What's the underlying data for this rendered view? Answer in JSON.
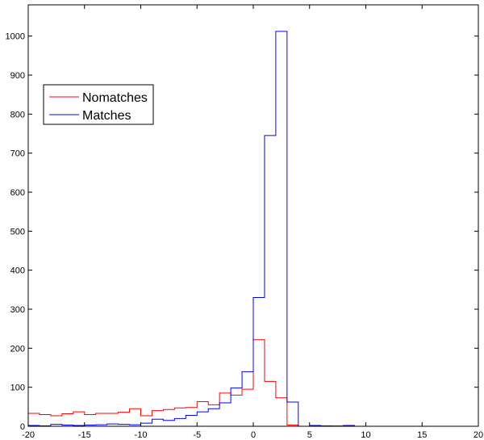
{
  "chart_data": {
    "type": "histogram",
    "title": "",
    "xlabel": "",
    "ylabel": "",
    "xlim": [
      -20,
      20
    ],
    "ylim": [
      0,
      1080
    ],
    "xticks": [
      -20,
      -15,
      -10,
      -5,
      0,
      5,
      10,
      15,
      20
    ],
    "yticks": [
      0,
      100,
      200,
      300,
      400,
      500,
      600,
      700,
      800,
      900,
      1000
    ],
    "grid": false,
    "legend_position": "upper-left",
    "bin_edges": [
      -20,
      -19,
      -18,
      -17,
      -16,
      -15,
      -14,
      -13,
      -12,
      -11,
      -10,
      -9,
      -8,
      -7,
      -6,
      -5,
      -4,
      -3,
      -2,
      -1,
      0,
      1,
      2,
      3,
      4,
      5,
      6,
      7,
      8,
      9,
      10
    ],
    "series": [
      {
        "name": "Nomatches",
        "color": "#ff0000",
        "values": [
          33,
          30,
          27,
          32,
          37,
          30,
          33,
          33,
          36,
          45,
          27,
          40,
          43,
          47,
          48,
          63,
          55,
          85,
          80,
          95,
          222,
          115,
          73,
          3,
          0,
          1,
          1,
          1,
          0,
          0
        ]
      },
      {
        "name": "Matches",
        "color": "#0000ff",
        "values": [
          2,
          1,
          5,
          3,
          2,
          3,
          4,
          6,
          5,
          4,
          8,
          18,
          15,
          20,
          28,
          37,
          45,
          60,
          98,
          140,
          330,
          745,
          1012,
          62,
          0,
          2,
          1,
          0,
          2,
          0
        ]
      }
    ]
  }
}
